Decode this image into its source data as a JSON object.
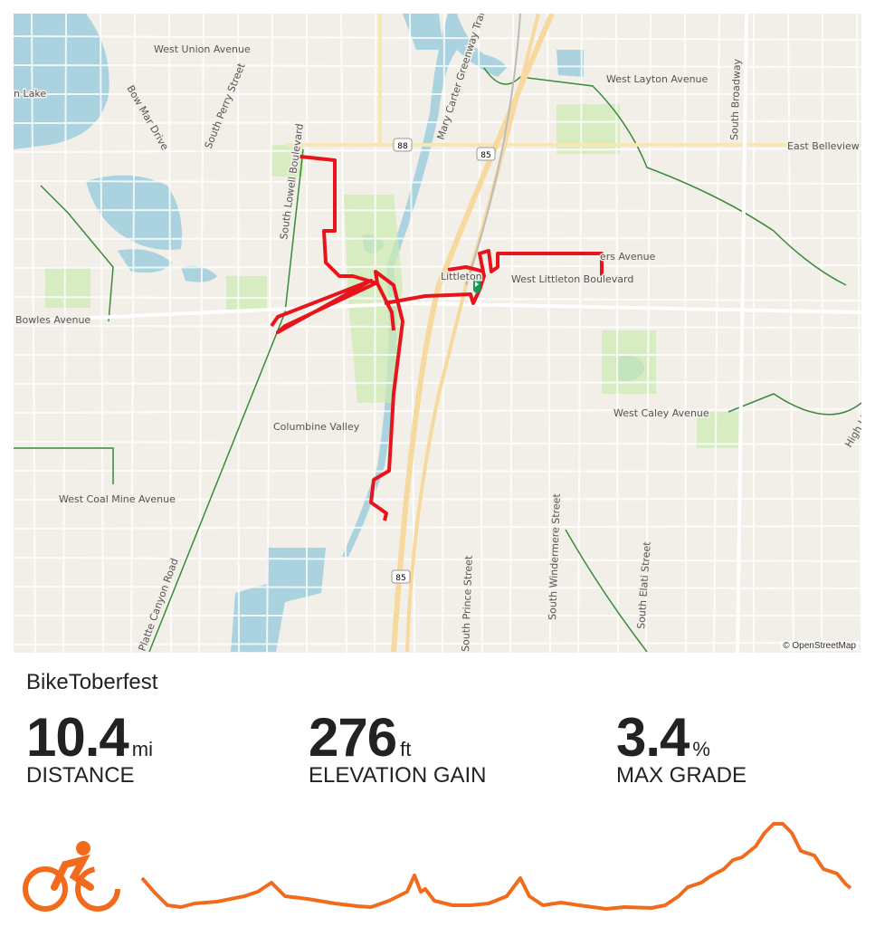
{
  "activity": {
    "title": "BikeToberfest",
    "type_icon": "cyclist-icon",
    "accent": "#f26b1d",
    "route_color": "#e8141b"
  },
  "stats": [
    {
      "value": "10.4",
      "unit": "mi",
      "label": "DISTANCE"
    },
    {
      "value": "276",
      "unit": "ft",
      "label": "ELEVATION GAIN"
    },
    {
      "value": "3.4",
      "unit": "%",
      "label": "MAX GRADE"
    }
  ],
  "map": {
    "attribution": "© OpenStreetMap",
    "labels": [
      "West Union Avenue",
      "Bow Mar Drive",
      "South Perry Street",
      "South Lowell Boulevard",
      "Bowles Avenue",
      "Columbine Valley",
      "West Coal Mine Avenue",
      "Platte Canyon Road",
      "West Layton Avenue",
      "East Belleview",
      "South Broadway",
      "West Littleton Boulevard",
      "ers Avenue",
      "West Caley Avenue",
      "South Windermere Street",
      "South Elati Street",
      "South Prince Street",
      "Mary Carter Greenway Trail",
      "High Line Canal",
      "Littleton",
      "n Lake"
    ],
    "shields": [
      "88",
      "85",
      "85"
    ]
  }
}
